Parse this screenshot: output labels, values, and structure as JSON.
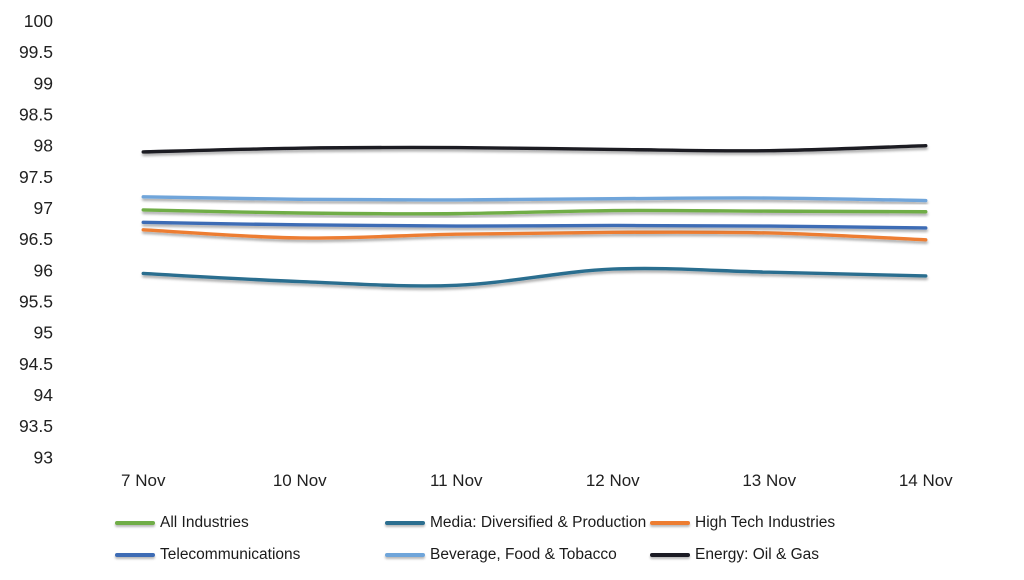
{
  "chart_data": {
    "type": "line",
    "title": "",
    "xlabel": "",
    "ylabel": "",
    "categories": [
      "7 Nov",
      "10 Nov",
      "11 Nov",
      "12 Nov",
      "13 Nov",
      "14 Nov"
    ],
    "series": [
      {
        "name": "All Industries",
        "color": "#70AD47",
        "values": [
          96.97,
          96.92,
          96.91,
          96.96,
          96.95,
          96.94
        ]
      },
      {
        "name": "Media: Diversified & Production",
        "color": "#2B6E8F",
        "values": [
          95.95,
          95.82,
          95.76,
          96.02,
          95.97,
          95.91
        ]
      },
      {
        "name": "High Tech Industries",
        "color": "#ED7D31",
        "values": [
          96.65,
          96.52,
          96.58,
          96.61,
          96.6,
          96.49
        ]
      },
      {
        "name": "Telecommunications",
        "color": "#3E6CB5",
        "values": [
          96.77,
          96.73,
          96.71,
          96.72,
          96.71,
          96.68
        ]
      },
      {
        "name": "Beverage, Food & Tobacco",
        "color": "#6FA5DA",
        "values": [
          97.18,
          97.14,
          97.13,
          97.15,
          97.16,
          97.12
        ]
      },
      {
        "name": "Energy: Oil & Gas",
        "color": "#1B1B24",
        "values": [
          97.9,
          97.96,
          97.97,
          97.94,
          97.92,
          98.0
        ]
      }
    ],
    "ylim": [
      93,
      100
    ],
    "ytick_labels": [
      "100",
      "99.5",
      "99",
      "98.5",
      "98",
      "97.5",
      "97",
      "96.5",
      "96",
      "95.5",
      "95",
      "94.5",
      "94",
      "93.5",
      "93"
    ],
    "grid": true,
    "grid_note": "horizontal gridlines for every tick except the 93 baseline",
    "grid_color": "#DADADA",
    "text_color": "#212121",
    "legend_position": "bottom",
    "legend_rows": [
      [
        0,
        1,
        2
      ],
      [
        3,
        4,
        5
      ]
    ]
  }
}
